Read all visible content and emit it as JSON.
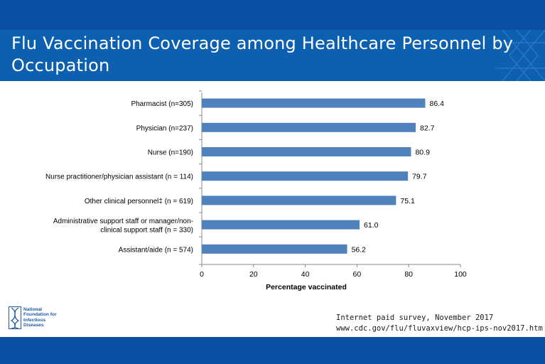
{
  "title": "Flu Vaccination Coverage among Healthcare Personnel by Occupation",
  "logo": {
    "text": "National Foundation for Infectious Diseases"
  },
  "source": {
    "line1": "Internet paid survey, November 2017",
    "line2": "www.cdc.gov/flu/fluvaxview/hcp-ips-nov2017.htm"
  },
  "colors": {
    "bar": "#4f81bd",
    "banner": "#0d5fb0",
    "band": "#0a4fa3"
  },
  "chart_data": {
    "type": "bar",
    "orientation": "horizontal",
    "categories": [
      "Pharmacist (n=305)",
      "Physician (n=237)",
      "Nurse (n=190)",
      "Nurse practitioner/physician assistant (n = 114)",
      "Other clinical personnel‡ (n = 619)",
      "Administrative support staff or manager/non-clinical support staff (n = 330)",
      "Assistant/aide (n = 574)"
    ],
    "category_lines": [
      [
        "Pharmacist (n=305)"
      ],
      [
        "Physician (n=237)"
      ],
      [
        "Nurse (n=190)"
      ],
      [
        "Nurse practitioner/physician assistant (n = 114)"
      ],
      [
        "Other clinical personnel‡ (n = 619)"
      ],
      [
        "Administrative support staff or manager/non-",
        "clinical support staff (n = 330)"
      ],
      [
        "Assistant/aide (n = 574)"
      ]
    ],
    "values": [
      86.4,
      82.7,
      80.9,
      79.7,
      75.1,
      61.0,
      56.2
    ],
    "value_labels": [
      "86.4",
      "82.7",
      "80.9",
      "79.7",
      "75.1",
      "61.0",
      "56.2"
    ],
    "xlabel": "Percentage vaccinated",
    "xlim": [
      0,
      100
    ],
    "xticks": [
      0,
      20,
      40,
      60,
      80,
      100
    ],
    "grid": false,
    "legend": "none"
  }
}
